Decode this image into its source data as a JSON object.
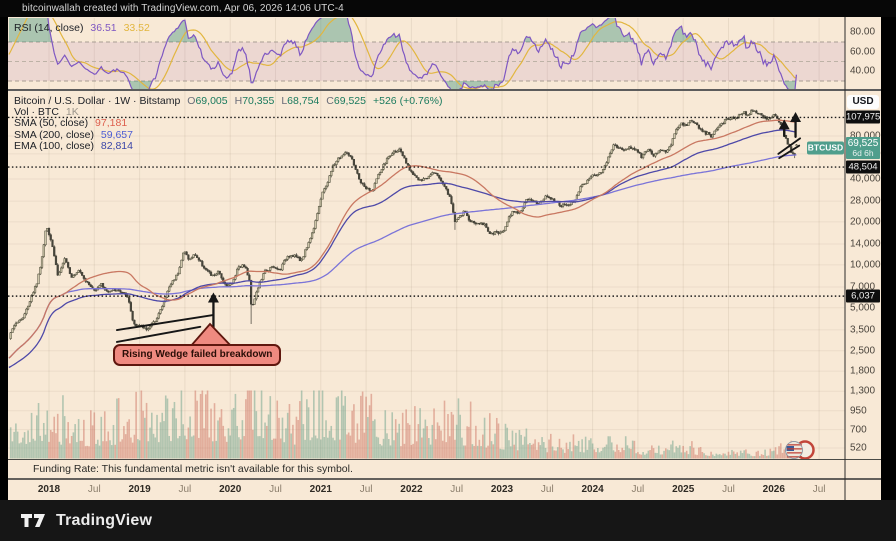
{
  "header": {
    "title": "bitcoinwallah created with TradingView.com, Apr 06, 2026 14:06 UTC-4"
  },
  "rsi_pane": {
    "label": "RSI (14, close)",
    "value_main": "36.51",
    "value_signal": "33.52",
    "axis_ticks": [
      "80.00",
      "60.00",
      "40.00"
    ]
  },
  "main_pane": {
    "symbol_line": {
      "title": "Bitcoin / U.S. Dollar · 1W · Bitstamp",
      "ohlc": [
        {
          "k": "O",
          "v": "69,005"
        },
        {
          "k": "H",
          "v": "70,355"
        },
        {
          "k": "L",
          "v": "68,754"
        },
        {
          "k": "C",
          "v": "69,525"
        }
      ],
      "change": "+526 (+0.76%)"
    },
    "indicators": [
      {
        "label": "Vol · BTC",
        "value": "1K",
        "value_color": "#9a948a"
      },
      {
        "label": "SMA (50, close)",
        "value": "97,181",
        "value_color": "#dd5f4e"
      },
      {
        "label": "SMA (200, close)",
        "value": "59,657",
        "value_color": "#4c5cd4"
      },
      {
        "label": "EMA (100, close)",
        "value": "82,814",
        "value_color": "#3b46a8"
      }
    ]
  },
  "price_axis": {
    "currency_button": "USD",
    "level_badges": [
      "107,975",
      "48,504",
      "6,037"
    ],
    "current_price": "69,525",
    "countdown": "6d 6h",
    "symbol_tag": "BTCUSD"
  },
  "time_axis": {
    "years": [
      "2018",
      "2019",
      "2020",
      "2021",
      "2022",
      "2023",
      "2024",
      "2025",
      "2026"
    ],
    "mid_label": "Jul"
  },
  "funding_pane": {
    "text": "Funding Rate: This fundamental metric isn't available for this symbol."
  },
  "footer": {
    "brand": "TradingView"
  },
  "annotation_label": "Rising Wedge failed breakdown",
  "colors": {
    "background": "#f8e9d6",
    "accent_teal": "#4f9e8c",
    "badge_black": "#0e0e0e",
    "candle_up_fill": "#cdc6a9",
    "candle_up_stroke": "#4b4a38",
    "candle_down": "#46443a",
    "sma50": "#c97862",
    "sma200": "#7b74d8",
    "ema100": "#4e49a8",
    "rsi_line": "#7e57c2",
    "rsi_signal": "#e2b63f",
    "rsi_band_fill": "rgba(123,31,162,0.09)",
    "vol_up": "rgba(94,153,131,0.45)",
    "vol_down": "rgba(199,103,86,0.45)",
    "annotation_ink": "#161616"
  },
  "chart_data": {
    "type": "candlestick",
    "symbol": "BTCUSD",
    "interval": "1W",
    "scale": "log",
    "grid": true,
    "x_range": [
      2017.55,
      2026.9
    ],
    "y_ticks": [
      80000,
      60000,
      40000,
      28000,
      20000,
      14000,
      10000,
      7000,
      5000,
      3500,
      2500,
      1800,
      1300,
      950,
      700,
      520
    ],
    "rsi_levels": [
      70,
      50,
      30
    ],
    "horizontal_levels": [
      107975,
      48504,
      6037
    ],
    "last_bar": {
      "open": 69005,
      "high": 70355,
      "low": 68754,
      "close": 69525,
      "change": 526,
      "change_pct": 0.76
    },
    "moving_averages": {
      "sma50": 97181,
      "sma200": 59657,
      "ema100": 82814
    },
    "rsi": {
      "period": 14,
      "value": 36.51,
      "signal": 33.52
    },
    "price_keypoints": [
      [
        2017.25,
        1800
      ],
      [
        2017.4,
        2100
      ],
      [
        2017.52,
        2600
      ],
      [
        2017.62,
        3900
      ],
      [
        2017.72,
        4300
      ],
      [
        2017.8,
        5900
      ],
      [
        2017.87,
        7600
      ],
      [
        2017.93,
        12000
      ],
      [
        2017.97,
        19200
      ],
      [
        2018.03,
        14500
      ],
      [
        2018.1,
        8300
      ],
      [
        2018.17,
        11000
      ],
      [
        2018.25,
        8300
      ],
      [
        2018.33,
        9300
      ],
      [
        2018.42,
        7500
      ],
      [
        2018.5,
        6600
      ],
      [
        2018.57,
        7400
      ],
      [
        2018.65,
        6400
      ],
      [
        2018.73,
        6700
      ],
      [
        2018.82,
        6400
      ],
      [
        2018.88,
        5600
      ],
      [
        2018.93,
        3900
      ],
      [
        2019.0,
        3750
      ],
      [
        2019.08,
        3550
      ],
      [
        2019.16,
        3950
      ],
      [
        2019.25,
        5100
      ],
      [
        2019.33,
        7100
      ],
      [
        2019.42,
        8700
      ],
      [
        2019.49,
        12600
      ],
      [
        2019.55,
        10800
      ],
      [
        2019.61,
        11900
      ],
      [
        2019.7,
        9800
      ],
      [
        2019.8,
        8300
      ],
      [
        2019.87,
        8900
      ],
      [
        2019.95,
        7200
      ],
      [
        2020.02,
        7350
      ],
      [
        2020.09,
        9800
      ],
      [
        2020.16,
        9900
      ],
      [
        2020.21,
        7900
      ],
      [
        2020.235,
        5000
      ],
      [
        2020.3,
        6750
      ],
      [
        2020.38,
        9000
      ],
      [
        2020.46,
        9600
      ],
      [
        2020.55,
        9200
      ],
      [
        2020.63,
        11600
      ],
      [
        2020.71,
        11700
      ],
      [
        2020.78,
        10600
      ],
      [
        2020.85,
        13600
      ],
      [
        2020.91,
        17000
      ],
      [
        2020.97,
        24500
      ],
      [
        2021.03,
        33500
      ],
      [
        2021.08,
        38500
      ],
      [
        2021.13,
        48500
      ],
      [
        2021.19,
        55500
      ],
      [
        2021.25,
        59000
      ],
      [
        2021.29,
        61500
      ],
      [
        2021.34,
        55000
      ],
      [
        2021.39,
        45000
      ],
      [
        2021.45,
        37000
      ],
      [
        2021.51,
        34000
      ],
      [
        2021.56,
        32500
      ],
      [
        2021.62,
        40500
      ],
      [
        2021.68,
        48000
      ],
      [
        2021.74,
        56500
      ],
      [
        2021.81,
        62000
      ],
      [
        2021.86,
        64500
      ],
      [
        2021.91,
        57000
      ],
      [
        2021.97,
        47500
      ],
      [
        2022.03,
        43000
      ],
      [
        2022.09,
        38500
      ],
      [
        2022.17,
        40500
      ],
      [
        2022.24,
        46000
      ],
      [
        2022.31,
        40500
      ],
      [
        2022.37,
        35500
      ],
      [
        2022.43,
        29000
      ],
      [
        2022.48,
        20500
      ],
      [
        2022.54,
        21800
      ],
      [
        2022.59,
        23800
      ],
      [
        2022.65,
        20000
      ],
      [
        2022.73,
        19500
      ],
      [
        2022.81,
        19300
      ],
      [
        2022.87,
        16300
      ],
      [
        2022.94,
        16900
      ],
      [
        2023.01,
        16800
      ],
      [
        2023.07,
        21500
      ],
      [
        2023.13,
        24000
      ],
      [
        2023.2,
        23200
      ],
      [
        2023.27,
        28300
      ],
      [
        2023.34,
        28200
      ],
      [
        2023.41,
        26800
      ],
      [
        2023.49,
        30400
      ],
      [
        2023.56,
        29300
      ],
      [
        2023.64,
        26000
      ],
      [
        2023.72,
        26200
      ],
      [
        2023.79,
        27500
      ],
      [
        2023.86,
        34800
      ],
      [
        2023.93,
        38000
      ],
      [
        2024.0,
        42800
      ],
      [
        2024.07,
        43000
      ],
      [
        2024.13,
        48500
      ],
      [
        2024.19,
        61500
      ],
      [
        2024.23,
        68000
      ],
      [
        2024.29,
        66500
      ],
      [
        2024.35,
        64200
      ],
      [
        2024.41,
        66800
      ],
      [
        2024.48,
        64000
      ],
      [
        2024.54,
        57500
      ],
      [
        2024.6,
        64500
      ],
      [
        2024.67,
        58800
      ],
      [
        2024.74,
        63200
      ],
      [
        2024.81,
        62000
      ],
      [
        2024.86,
        69500
      ],
      [
        2024.9,
        80500
      ],
      [
        2024.94,
        93000
      ],
      [
        2024.99,
        97500
      ],
      [
        2025.04,
        95000
      ],
      [
        2025.09,
        103500
      ],
      [
        2025.14,
        97000
      ],
      [
        2025.2,
        86000
      ],
      [
        2025.26,
        83500
      ],
      [
        2025.31,
        80500
      ],
      [
        2025.36,
        86500
      ],
      [
        2025.42,
        96500
      ],
      [
        2025.48,
        105500
      ],
      [
        2025.54,
        107500
      ],
      [
        2025.6,
        110000
      ],
      [
        2025.66,
        118000
      ],
      [
        2025.71,
        113500
      ],
      [
        2025.77,
        121500
      ],
      [
        2025.83,
        115500
      ],
      [
        2025.89,
        108000
      ],
      [
        2025.95,
        106500
      ],
      [
        2026.0,
        111000
      ],
      [
        2026.05,
        103500
      ],
      [
        2026.1,
        87000
      ],
      [
        2026.15,
        72500
      ],
      [
        2026.19,
        61500
      ],
      [
        2026.23,
        59500
      ],
      [
        2026.262,
        69525
      ]
    ],
    "forced_wick_lows": [
      [
        2020.235,
        3850
      ],
      [
        2022.48,
        17600
      ],
      [
        2026.23,
        56000
      ]
    ],
    "volume_profile": [
      [
        2017.25,
        0.45
      ],
      [
        2018.0,
        0.6
      ],
      [
        2018.5,
        0.5
      ],
      [
        2018.95,
        0.65
      ],
      [
        2019.3,
        0.7
      ],
      [
        2019.6,
        0.85
      ],
      [
        2020.0,
        0.6
      ],
      [
        2020.235,
        1.0
      ],
      [
        2020.6,
        0.5
      ],
      [
        2021.0,
        0.8
      ],
      [
        2021.3,
        0.7
      ],
      [
        2021.6,
        0.55
      ],
      [
        2021.9,
        0.5
      ],
      [
        2022.2,
        0.42
      ],
      [
        2022.48,
        0.58
      ],
      [
        2022.9,
        0.38
      ],
      [
        2023.1,
        0.32
      ],
      [
        2023.5,
        0.22
      ],
      [
        2023.9,
        0.22
      ],
      [
        2024.2,
        0.28
      ],
      [
        2024.6,
        0.14
      ],
      [
        2024.94,
        0.2
      ],
      [
        2025.3,
        0.1
      ],
      [
        2025.7,
        0.09
      ],
      [
        2026.0,
        0.11
      ],
      [
        2026.15,
        0.17
      ],
      [
        2026.262,
        0.13
      ]
    ],
    "annotations": {
      "wedge_2019": {
        "lines": [
          [
            2018.75,
            3490,
            2019.81,
            4450
          ],
          [
            2018.75,
            2880,
            2019.67,
            3680
          ]
        ],
        "arrows": [
          [
            2019.815,
            3500,
            6300
          ]
        ],
        "label": "Rising Wedge failed breakdown"
      },
      "wedge_2026": {
        "lines": [
          [
            2026.05,
            60000,
            2026.29,
            77000
          ],
          [
            2026.06,
            56000,
            2026.28,
            68500
          ]
        ],
        "arrows": [
          [
            2026.115,
            80000,
            103000
          ],
          [
            2026.24,
            79000,
            116000
          ]
        ]
      }
    }
  }
}
